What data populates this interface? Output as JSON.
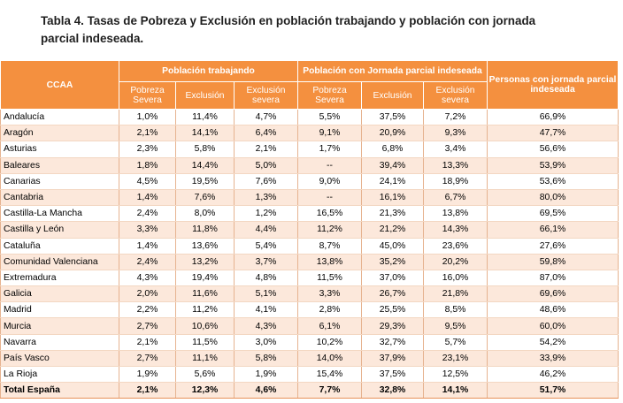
{
  "title": "Tabla 4. Tasas de Pobreza y Exclusión en población trabajando y población con jornada parcial indeseada.",
  "header": {
    "ccaa": "CCAA",
    "group1": "Población trabajando",
    "group2": "Población con Jornada parcial indeseada",
    "group3": "Personas con jornada parcial indeseada",
    "sub": [
      "Pobreza Severa",
      "Exclusión",
      "Exclusión severa",
      "Pobreza Severa",
      "Exclusión",
      "Exclusión severa"
    ]
  },
  "rows": [
    [
      "Andalucía",
      "1,0%",
      "11,4%",
      "4,7%",
      "5,5%",
      "37,5%",
      "7,2%",
      "66,9%"
    ],
    [
      "Aragón",
      "2,1%",
      "14,1%",
      "6,4%",
      "9,1%",
      "20,9%",
      "9,3%",
      "47,7%"
    ],
    [
      "Asturias",
      "2,3%",
      "5,8%",
      "2,1%",
      "1,7%",
      "6,8%",
      "3,4%",
      "56,6%"
    ],
    [
      "Baleares",
      "1,8%",
      "14,4%",
      "5,0%",
      "--",
      "39,4%",
      "13,3%",
      "53,9%"
    ],
    [
      "Canarias",
      "4,5%",
      "19,5%",
      "7,6%",
      "9,0%",
      "24,1%",
      "18,9%",
      "53,6%"
    ],
    [
      "Cantabria",
      "1,4%",
      "7,6%",
      "1,3%",
      "--",
      "16,1%",
      "6,7%",
      "80,0%"
    ],
    [
      "Castilla-La Mancha",
      "2,4%",
      "8,0%",
      "1,2%",
      "16,5%",
      "21,3%",
      "13,8%",
      "69,5%"
    ],
    [
      "Castilla y León",
      "3,3%",
      "11,8%",
      "4,4%",
      "11,2%",
      "21,2%",
      "14,3%",
      "66,1%"
    ],
    [
      "Cataluña",
      "1,4%",
      "13,6%",
      "5,4%",
      "8,7%",
      "45,0%",
      "23,6%",
      "27,6%"
    ],
    [
      "Comunidad Valenciana",
      "2,4%",
      "13,2%",
      "3,7%",
      "13,8%",
      "35,2%",
      "20,2%",
      "59,8%"
    ],
    [
      "Extremadura",
      "4,3%",
      "19,4%",
      "4,8%",
      "11,5%",
      "37,0%",
      "16,0%",
      "87,0%"
    ],
    [
      "Galicia",
      "2,0%",
      "11,6%",
      "5,1%",
      "3,3%",
      "26,7%",
      "21,8%",
      "69,6%"
    ],
    [
      "Madrid",
      "2,2%",
      "11,2%",
      "4,1%",
      "2,8%",
      "25,5%",
      "8,5%",
      "48,6%"
    ],
    [
      "Murcia",
      "2,7%",
      "10,6%",
      "4,3%",
      "6,1%",
      "29,3%",
      "9,5%",
      "60,0%"
    ],
    [
      "Navarra",
      "2,1%",
      "11,5%",
      "3,0%",
      "10,2%",
      "32,7%",
      "5,7%",
      "54,2%"
    ],
    [
      "País Vasco",
      "2,7%",
      "11,1%",
      "5,8%",
      "14,0%",
      "37,9%",
      "23,1%",
      "33,9%"
    ],
    [
      "La Rioja",
      "1,9%",
      "5,6%",
      "1,9%",
      "15,4%",
      "37,5%",
      "12,5%",
      "46,2%"
    ]
  ],
  "total": [
    "Total España",
    "2,1%",
    "12,3%",
    "4,6%",
    "7,7%",
    "32,8%",
    "14,1%",
    "51,7%"
  ],
  "colors": {
    "header_bg": "#f4903f",
    "stripe_bg": "#fce8db"
  }
}
